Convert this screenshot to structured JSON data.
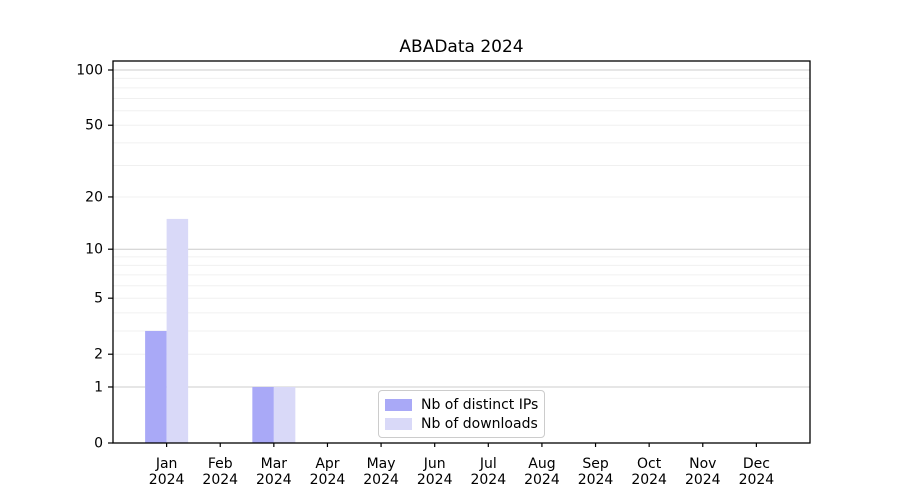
{
  "chart_data": {
    "type": "bar",
    "title": "ABAData 2024",
    "categories": [
      {
        "month": "Jan",
        "year": "2024"
      },
      {
        "month": "Feb",
        "year": "2024"
      },
      {
        "month": "Mar",
        "year": "2024"
      },
      {
        "month": "Apr",
        "year": "2024"
      },
      {
        "month": "May",
        "year": "2024"
      },
      {
        "month": "Jun",
        "year": "2024"
      },
      {
        "month": "Jul",
        "year": "2024"
      },
      {
        "month": "Aug",
        "year": "2024"
      },
      {
        "month": "Sep",
        "year": "2024"
      },
      {
        "month": "Oct",
        "year": "2024"
      },
      {
        "month": "Nov",
        "year": "2024"
      },
      {
        "month": "Dec",
        "year": "2024"
      }
    ],
    "series": [
      {
        "name": "Nb of distinct IPs",
        "color": "#a9a9f7",
        "values": [
          3,
          0,
          1,
          0,
          0,
          0,
          0,
          0,
          0,
          0,
          0,
          0
        ]
      },
      {
        "name": "Nb of downloads",
        "color": "#d9d9f8",
        "values": [
          15,
          0,
          1,
          0,
          0,
          0,
          0,
          0,
          0,
          0,
          0,
          0
        ]
      }
    ],
    "y_axis": {
      "scale": "log1p",
      "range": [
        0,
        100
      ],
      "ticks": [
        0,
        1,
        2,
        5,
        10,
        20,
        50,
        100
      ],
      "decade_gridlines": [
        1,
        10,
        100
      ],
      "minor_gridlines": [
        3,
        4,
        6,
        7,
        8,
        9,
        30,
        40,
        60,
        70,
        80,
        90
      ]
    },
    "x_axis": {
      "label_lines": 2
    },
    "legend": {
      "position": "lower center"
    },
    "colors": {
      "grid_major": "#cccccc",
      "grid_minor": "#f0f0f0",
      "axis": "#000000",
      "background": "#ffffff",
      "text": "#000000"
    }
  }
}
